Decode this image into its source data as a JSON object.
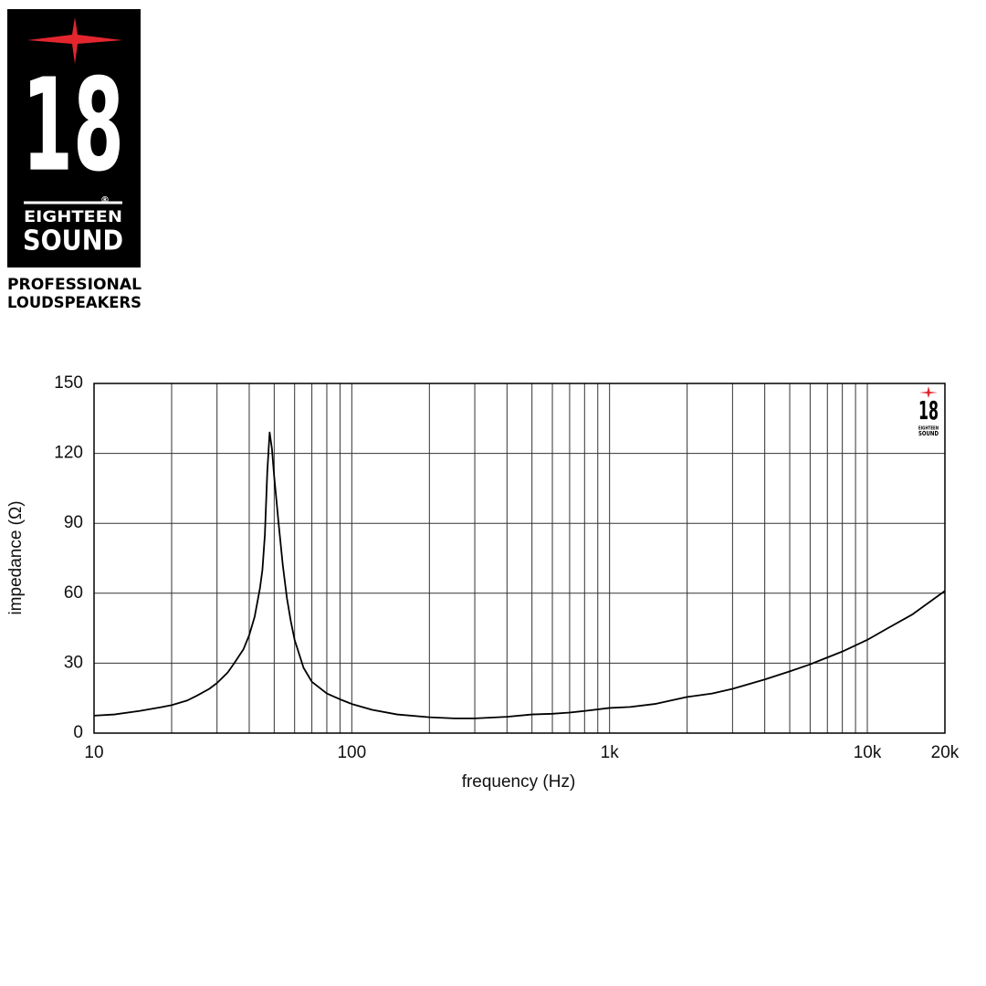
{
  "logo": {
    "number": "18",
    "mark": "®",
    "line1": "EIGHTEEN",
    "line2": "SOUND",
    "tagline1": "PROFESSIONAL",
    "tagline2": "LOUDSPEAKERS"
  },
  "chart_data": {
    "type": "line",
    "x_label": "frequency (Hz)",
    "y_label": "impedance (Ω)",
    "x": [
      10,
      12,
      15,
      18,
      20,
      23,
      25,
      28,
      30,
      33,
      35,
      38,
      40,
      42,
      44,
      45,
      46,
      47,
      48,
      49,
      50,
      51,
      52,
      54,
      56,
      58,
      60,
      65,
      70,
      80,
      90,
      100,
      120,
      150,
      200,
      250,
      300,
      400,
      500,
      600,
      700,
      800,
      1000,
      1200,
      1500,
      2000,
      2500,
      3000,
      4000,
      5000,
      6000,
      8000,
      10000,
      12000,
      15000,
      20000
    ],
    "values": [
      7.5,
      8,
      9.5,
      11,
      12,
      14,
      16,
      19,
      21.5,
      26,
      30,
      36,
      42,
      50,
      62,
      70,
      85,
      112,
      129,
      122,
      110,
      100,
      90,
      72,
      58,
      48,
      40,
      28,
      22,
      17,
      14.5,
      12.5,
      10,
      8,
      6.8,
      6.3,
      6.3,
      7,
      8,
      8.3,
      8.8,
      9.5,
      10.8,
      11.2,
      12.5,
      15.5,
      17,
      19,
      23,
      26.5,
      29.5,
      35,
      40,
      45,
      51,
      61
    ],
    "color": "#000000",
    "xscale": "log",
    "xlim": [
      10,
      20000
    ],
    "ylim": [
      0,
      150
    ],
    "xticks": [
      10,
      100,
      {
        "value": 1000,
        "label": "1k"
      },
      {
        "value": 10000,
        "label": "10k"
      },
      {
        "value": 20000,
        "label": "20k"
      }
    ],
    "xgrid": [
      20,
      30,
      40,
      50,
      60,
      70,
      80,
      90,
      200,
      300,
      400,
      500,
      600,
      700,
      800,
      900,
      2000,
      3000,
      4000,
      5000,
      6000,
      7000,
      8000,
      9000
    ],
    "yticks": [
      0,
      30,
      60,
      90,
      120,
      150
    ],
    "grid": true
  }
}
